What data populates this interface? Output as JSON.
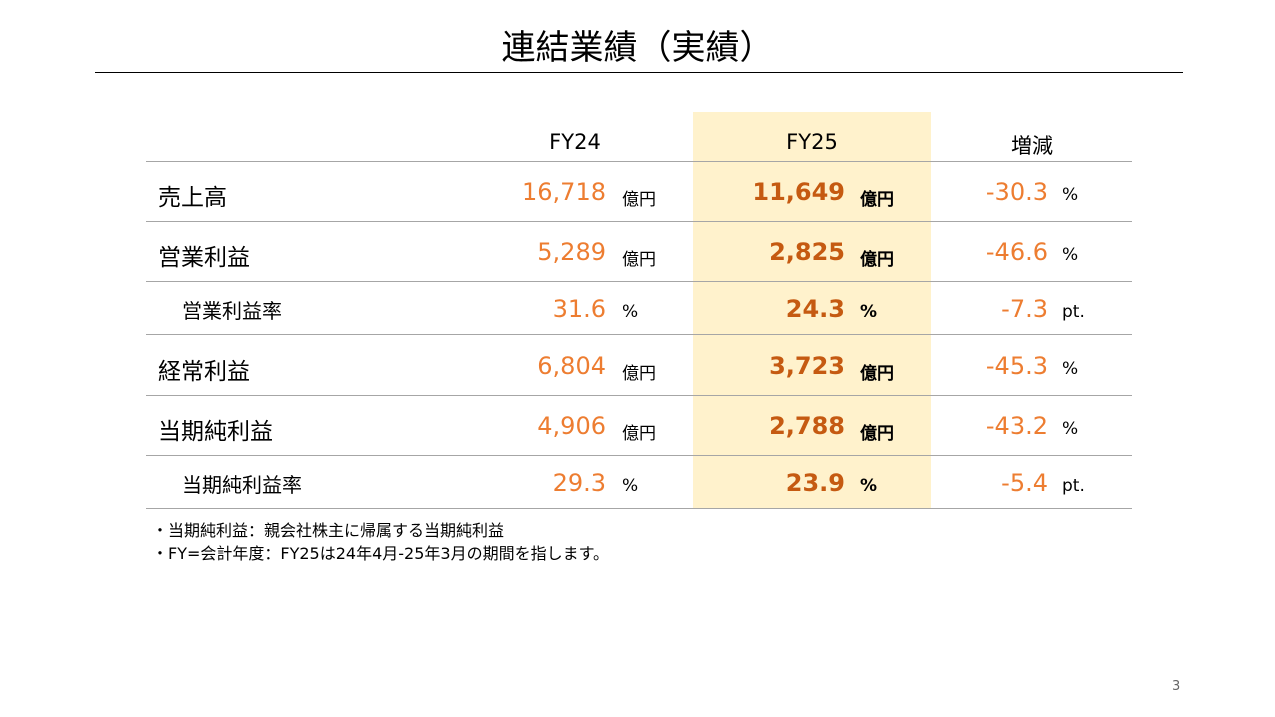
{
  "title": "連結業績（実績）",
  "columns": [
    "FY24",
    "FY25",
    "増減"
  ],
  "rows": [
    {
      "label": "売上高",
      "fy24": "16,718",
      "fy24_unit": "億円",
      "fy25": "11,649",
      "fy25_unit": "億円",
      "change": "-30.3",
      "change_unit": "%",
      "sub": false
    },
    {
      "label": "営業利益",
      "fy24": "5,289",
      "fy24_unit": "億円",
      "fy25": "2,825",
      "fy25_unit": "億円",
      "change": "-46.6",
      "change_unit": "%",
      "sub": false
    },
    {
      "label": "営業利益率",
      "fy24": "31.6",
      "fy24_unit": "%",
      "fy25": "24.3",
      "fy25_unit": "%",
      "change": "-7.3",
      "change_unit": "pt.",
      "sub": true
    },
    {
      "label": "経常利益",
      "fy24": "6,804",
      "fy24_unit": "億円",
      "fy25": "3,723",
      "fy25_unit": "億円",
      "change": "-45.3",
      "change_unit": "%",
      "sub": false
    },
    {
      "label": "当期純利益",
      "fy24": "4,906",
      "fy24_unit": "億円",
      "fy25": "2,788",
      "fy25_unit": "億円",
      "change": "-43.2",
      "change_unit": "%",
      "sub": false
    },
    {
      "label": "当期純利益率",
      "fy24": "29.3",
      "fy24_unit": "%",
      "fy25": "23.9",
      "fy25_unit": "%",
      "change": "-5.4",
      "change_unit": "pt.",
      "sub": true
    }
  ],
  "notes": [
    "・当期純利益：親会社株主に帰属する当期純利益",
    "・FY=会計年度：FY25は24年4月-25年3月の期間を指します。"
  ],
  "page_number": "3",
  "colors": {
    "value": "#ED7D31",
    "highlight_value": "#C55A11",
    "highlight_bg": "#FFF2CC"
  }
}
